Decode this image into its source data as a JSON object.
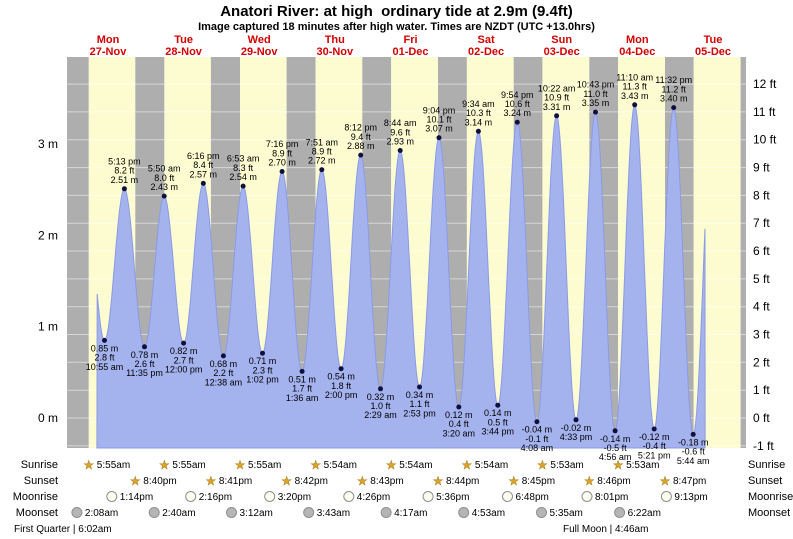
{
  "title": "Anatori River: at high  ordinary tide at 2.9m (9.4ft)",
  "subtitle": "Image captured 18 minutes after high water. Times are NZDT (UTC +13.0hrs)",
  "chart_data": {
    "type": "area",
    "description": "Tide height curve over 9 days with day/night background bands, tide extreme labels, and sun/moon event rows",
    "y_axis_left": {
      "unit": "m",
      "ticks": [
        3,
        2,
        1,
        0
      ]
    },
    "y_axis_right": {
      "unit": "ft",
      "ticks": [
        12,
        11,
        10,
        9,
        8,
        7,
        6,
        5,
        4,
        3,
        2,
        1,
        0,
        -1
      ]
    },
    "days": [
      {
        "name": "Mon",
        "date": "27-Nov"
      },
      {
        "name": "Tue",
        "date": "28-Nov"
      },
      {
        "name": "Wed",
        "date": "29-Nov"
      },
      {
        "name": "Thu",
        "date": "30-Nov"
      },
      {
        "name": "Fri",
        "date": "01-Dec"
      },
      {
        "name": "Sat",
        "date": "02-Dec"
      },
      {
        "name": "Sun",
        "date": "03-Dec"
      },
      {
        "name": "Mon",
        "date": "04-Dec"
      },
      {
        "name": "Tue",
        "date": "05-Dec"
      }
    ],
    "tide_events": [
      {
        "type": "low",
        "day": 0,
        "time": "10:55 am",
        "m": "0.85",
        "ft": "2.8"
      },
      {
        "type": "high",
        "day": 0,
        "time": "5:13 pm",
        "m": "2.51",
        "ft": "8.2"
      },
      {
        "type": "low",
        "day": 0,
        "time": "11:35 pm",
        "m": "0.78",
        "ft": "2.6"
      },
      {
        "type": "high",
        "day": 1,
        "time": "5:50 am",
        "m": "2.43",
        "ft": "8.0"
      },
      {
        "type": "low",
        "day": 1,
        "time": "12:00 pm",
        "m": "0.82",
        "ft": "2.7"
      },
      {
        "type": "high",
        "day": 1,
        "time": "6:16 pm",
        "m": "2.57",
        "ft": "8.4"
      },
      {
        "type": "low",
        "day": 2,
        "time": "12:38 am",
        "m": "0.68",
        "ft": "2.2"
      },
      {
        "type": "high",
        "day": 2,
        "time": "6:53 am",
        "m": "2.54",
        "ft": "8.3"
      },
      {
        "type": "low",
        "day": 2,
        "time": "1:02 pm",
        "m": "0.71",
        "ft": "2.3"
      },
      {
        "type": "high",
        "day": 2,
        "time": "7:16 pm",
        "m": "2.70",
        "ft": "8.9"
      },
      {
        "type": "low",
        "day": 3,
        "time": "1:36 am",
        "m": "0.51",
        "ft": "1.7"
      },
      {
        "type": "high",
        "day": 3,
        "time": "7:51 am",
        "m": "2.72",
        "ft": "8.9"
      },
      {
        "type": "low",
        "day": 3,
        "time": "2:00 pm",
        "m": "0.54",
        "ft": "1.8"
      },
      {
        "type": "high",
        "day": 3,
        "time": "8:12 pm",
        "m": "2.88",
        "ft": "9.4"
      },
      {
        "type": "low",
        "day": 4,
        "time": "2:29 am",
        "m": "0.32",
        "ft": "1.0"
      },
      {
        "type": "high",
        "day": 4,
        "time": "8:44 am",
        "m": "2.93",
        "ft": "9.6"
      },
      {
        "type": "low",
        "day": 4,
        "time": "2:53 pm",
        "m": "0.34",
        "ft": "1.1"
      },
      {
        "type": "high",
        "day": 4,
        "time": "9:04 pm",
        "m": "3.07",
        "ft": "10.1"
      },
      {
        "type": "low",
        "day": 5,
        "time": "3:20 am",
        "m": "0.12",
        "ft": "0.4"
      },
      {
        "type": "high",
        "day": 5,
        "time": "9:34 am",
        "m": "3.14",
        "ft": "10.3"
      },
      {
        "type": "low",
        "day": 5,
        "time": "3:44 pm",
        "m": "0.14",
        "ft": "0.5"
      },
      {
        "type": "high",
        "day": 5,
        "time": "9:54 pm",
        "m": "3.24",
        "ft": "10.6"
      },
      {
        "type": "low",
        "day": 6,
        "time": "4:08 am",
        "m": "-0.04",
        "ft": "-0.1"
      },
      {
        "type": "high",
        "day": 6,
        "time": "10:22 am",
        "m": "3.31",
        "ft": "10.9"
      },
      {
        "type": "low",
        "day": 6,
        "time": "4:33 pm",
        "m": "-0.02",
        "ft": null
      },
      {
        "type": "high",
        "day": 6,
        "time": "10:43 pm",
        "m": "3.35",
        "ft": "11.0"
      },
      {
        "type": "low",
        "day": 7,
        "time": "4:56 am",
        "m": "-0.14",
        "ft": "-0.5"
      },
      {
        "type": "high",
        "day": 7,
        "time": "11:10 am",
        "m": "3.43",
        "ft": "11.3"
      },
      {
        "type": "low",
        "day": 7,
        "time": "5:21 pm",
        "m": "-0.12",
        "ft": "-0.4"
      },
      {
        "type": "high",
        "day": 7,
        "time": "11:32 pm",
        "m": "3.40",
        "ft": "11.2"
      },
      {
        "type": "low",
        "day": 8,
        "time": "5:44 am",
        "m": "-0.18",
        "ft": "-0.6"
      }
    ]
  },
  "astro": {
    "rows": [
      {
        "label": "Sunrise",
        "icon": "sunrise-star-icon",
        "times": [
          "5:55am",
          "5:55am",
          "5:55am",
          "5:54am",
          "5:54am",
          "5:54am",
          "5:53am",
          "5:53am"
        ]
      },
      {
        "label": "Sunset",
        "icon": "sunset-star-icon",
        "times": [
          "8:40pm",
          "8:41pm",
          "8:42pm",
          "8:43pm",
          "8:44pm",
          "8:45pm",
          "8:46pm",
          "8:47pm"
        ]
      },
      {
        "label": "Moonrise",
        "icon": "moonrise-moon-icon",
        "times": [
          "1:14pm",
          "2:16pm",
          "3:20pm",
          "4:26pm",
          "5:36pm",
          "6:48pm",
          "8:01pm",
          "9:13pm"
        ]
      },
      {
        "label": "Moonset",
        "icon": "moonset-moon-icon",
        "times": [
          "2:08am",
          "2:40am",
          "3:12am",
          "3:43am",
          "4:17am",
          "4:53am",
          "5:35am",
          "6:22am"
        ]
      }
    ],
    "phase_notes": [
      {
        "text": "First Quarter | 6:02am"
      },
      {
        "text": "Full Moon | 4:46am"
      }
    ]
  },
  "colors": {
    "day_band": "#fcfcd0",
    "night_band": "#aeaeae",
    "tide_fill": "#a4b2ee",
    "tide_stroke": "#8b9be4",
    "marker": "#101040",
    "day_label": "#d40000",
    "star": "#dda324",
    "moon_light": "#fdfdf0",
    "moon_dark": "#b5b5b5"
  }
}
